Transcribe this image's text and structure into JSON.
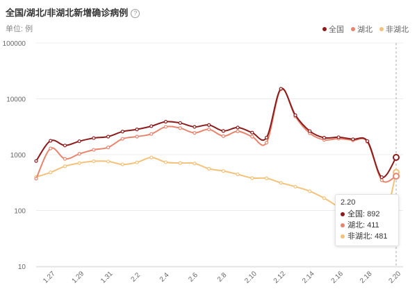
{
  "header": {
    "title": "全国/湖北/非湖北新增确诊病例",
    "help_icon": "?",
    "unit": "单位: 例"
  },
  "chart_data": {
    "type": "line",
    "yscale": "log",
    "ylim": [
      10,
      100000
    ],
    "yticks": [
      10,
      100,
      1000,
      10000,
      100000
    ],
    "ytick_labels": [
      "10",
      "100",
      "1000",
      "10000",
      "100000"
    ],
    "x": [
      "1.26",
      "1.27",
      "1.28",
      "1.29",
      "1.30",
      "1.31",
      "2.1",
      "2.2",
      "2.3",
      "2.4",
      "2.5",
      "2.6",
      "2.7",
      "2.8",
      "2.9",
      "2.10",
      "2.11",
      "2.12",
      "2.13",
      "2.14",
      "2.15",
      "2.16",
      "2.17",
      "2.18",
      "2.19",
      "2.20"
    ],
    "xtick_labels": [
      "1.27",
      "1.29",
      "1.31",
      "2.2",
      "2.4",
      "2.6",
      "2.8",
      "2.10",
      "2.12",
      "2.14",
      "2.16",
      "2.18",
      "2.20"
    ],
    "legend_position": "top-right",
    "series": [
      {
        "name": "全国",
        "color": "#8b1a1a",
        "values": [
          769,
          1771,
          1459,
          1737,
          1982,
          2102,
          2590,
          2829,
          3235,
          3887,
          3694,
          3143,
          3399,
          2656,
          3062,
          2478,
          2015,
          15152,
          5090,
          2641,
          2009,
          2048,
          1886,
          1749,
          394,
          892
        ]
      },
      {
        "name": "湖北",
        "color": "#e8846e",
        "values": [
          371,
          1291,
          840,
          1032,
          1220,
          1347,
          1921,
          2103,
          2345,
          3156,
          2987,
          2447,
          2841,
          2147,
          2618,
          2097,
          1638,
          14840,
          4823,
          2420,
          1843,
          1933,
          1807,
          1693,
          349,
          411
        ]
      },
      {
        "name": "非湖北",
        "color": "#f3c27a",
        "values": [
          398,
          480,
          619,
          705,
          762,
          755,
          669,
          726,
          890,
          731,
          707,
          696,
          558,
          509,
          444,
          381,
          377,
          312,
          267,
          221,
          166,
          115,
          79,
          56,
          45,
          481
        ]
      }
    ]
  },
  "tooltip": {
    "title": "2.20",
    "rows": [
      {
        "label": "全国: 892",
        "color": "#8b1a1a"
      },
      {
        "label": "湖北: 411",
        "color": "#e8846e"
      },
      {
        "label": "非湖北: 481",
        "color": "#f3c27a"
      }
    ]
  }
}
